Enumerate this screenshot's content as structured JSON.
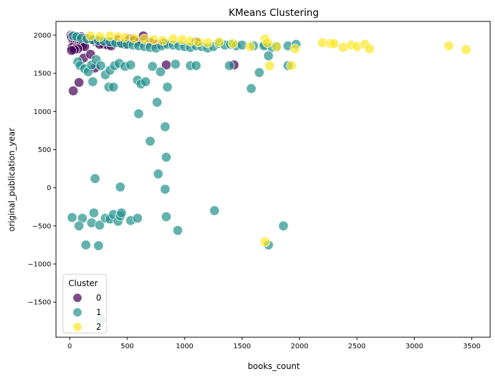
{
  "chart_data": {
    "type": "scatter",
    "title": "KMeans Clustering",
    "xlabel": "books_count",
    "ylabel": "original_publication_year",
    "xlim": [
      -120,
      3660
    ],
    "ylim": [
      -1960,
      2180
    ],
    "xticks": [
      0,
      500,
      1000,
      1500,
      2000,
      2500,
      3000,
      3500
    ],
    "yticks": [
      -1500,
      -1000,
      -500,
      0,
      500,
      1000,
      1500,
      2000
    ],
    "grid": false,
    "legend": {
      "title": "Cluster",
      "position": "lower-left"
    },
    "series": [
      {
        "name": "0",
        "color": "#440154",
        "points": [
          [
            10,
            2000
          ],
          [
            20,
            1990
          ],
          [
            30,
            1985
          ],
          [
            15,
            1970
          ],
          [
            40,
            1960
          ],
          [
            55,
            1950
          ],
          [
            70,
            1940
          ],
          [
            25,
            1930
          ],
          [
            35,
            1920
          ],
          [
            45,
            1900
          ],
          [
            60,
            1890
          ],
          [
            80,
            1880
          ],
          [
            90,
            1870
          ],
          [
            110,
            1860
          ],
          [
            130,
            1850
          ],
          [
            20,
            1840
          ],
          [
            50,
            1830
          ],
          [
            70,
            1820
          ],
          [
            40,
            1810
          ],
          [
            15,
            1800
          ],
          [
            100,
            1980
          ],
          [
            140,
            1960
          ],
          [
            160,
            1950
          ],
          [
            190,
            1940
          ],
          [
            220,
            1920
          ],
          [
            250,
            1910
          ],
          [
            280,
            1900
          ],
          [
            300,
            1880
          ],
          [
            330,
            1870
          ],
          [
            360,
            1860
          ],
          [
            390,
            1920
          ],
          [
            420,
            1940
          ],
          [
            450,
            1900
          ],
          [
            480,
            1880
          ],
          [
            520,
            1950
          ],
          [
            560,
            1930
          ],
          [
            600,
            1910
          ],
          [
            640,
            1990
          ],
          [
            700,
            1900
          ],
          [
            760,
            1880
          ],
          [
            820,
            1890
          ],
          [
            1100,
            1910
          ],
          [
            840,
            1610
          ],
          [
            1430,
            1610
          ],
          [
            220,
            1570
          ],
          [
            30,
            1270
          ],
          [
            80,
            1380
          ],
          [
            120,
            1700
          ],
          [
            180,
            1750
          ],
          [
            260,
            1880
          ]
        ]
      },
      {
        "name": "1",
        "color": "#21918c",
        "points": [
          [
            30,
            1990
          ],
          [
            60,
            1980
          ],
          [
            100,
            1960
          ],
          [
            150,
            1950
          ],
          [
            200,
            1940
          ],
          [
            250,
            1930
          ],
          [
            300,
            1920
          ],
          [
            350,
            1910
          ],
          [
            400,
            1900
          ],
          [
            450,
            1890
          ],
          [
            500,
            1880
          ],
          [
            550,
            1870
          ],
          [
            600,
            1860
          ],
          [
            650,
            1850
          ],
          [
            700,
            1840
          ],
          [
            750,
            1830
          ],
          [
            800,
            1860
          ],
          [
            850,
            1880
          ],
          [
            900,
            1870
          ],
          [
            950,
            1860
          ],
          [
            1000,
            1850
          ],
          [
            1050,
            1840
          ],
          [
            1100,
            1860
          ],
          [
            1150,
            1850
          ],
          [
            1200,
            1830
          ],
          [
            1250,
            1850
          ],
          [
            1300,
            1890
          ],
          [
            1350,
            1870
          ],
          [
            1400,
            1880
          ],
          [
            1450,
            1860
          ],
          [
            1500,
            1870
          ],
          [
            1600,
            1860
          ],
          [
            1700,
            1880
          ],
          [
            1800,
            1850
          ],
          [
            1900,
            1860
          ],
          [
            1970,
            1880
          ],
          [
            1690,
            1860
          ],
          [
            1760,
            1840
          ],
          [
            70,
            1650
          ],
          [
            90,
            1600
          ],
          [
            130,
            1560
          ],
          [
            160,
            1520
          ],
          [
            190,
            1610
          ],
          [
            230,
            1680
          ],
          [
            270,
            1600
          ],
          [
            310,
            1480
          ],
          [
            350,
            1540
          ],
          [
            390,
            1600
          ],
          [
            430,
            1630
          ],
          [
            480,
            1590
          ],
          [
            530,
            1610
          ],
          [
            590,
            1410
          ],
          [
            620,
            1360
          ],
          [
            660,
            1390
          ],
          [
            720,
            1590
          ],
          [
            790,
            1520
          ],
          [
            850,
            1320
          ],
          [
            920,
            1620
          ],
          [
            1050,
            1600
          ],
          [
            1100,
            1600
          ],
          [
            1390,
            1600
          ],
          [
            1580,
            1300
          ],
          [
            1650,
            1510
          ],
          [
            1730,
            1730
          ],
          [
            1900,
            1600
          ],
          [
            340,
            1320
          ],
          [
            380,
            1320
          ],
          [
            200,
            1390
          ],
          [
            760,
            1120
          ],
          [
            600,
            970
          ],
          [
            830,
            800
          ],
          [
            700,
            610
          ],
          [
            840,
            400
          ],
          [
            770,
            180
          ],
          [
            220,
            120
          ],
          [
            440,
            10
          ],
          [
            830,
            -20
          ],
          [
            20,
            -390
          ],
          [
            110,
            -400
          ],
          [
            80,
            -500
          ],
          [
            140,
            -750
          ],
          [
            210,
            -330
          ],
          [
            190,
            -460
          ],
          [
            260,
            -490
          ],
          [
            250,
            -760
          ],
          [
            310,
            -400
          ],
          [
            350,
            -410
          ],
          [
            380,
            -350
          ],
          [
            420,
            -440
          ],
          [
            440,
            -370
          ],
          [
            450,
            -330
          ],
          [
            530,
            -430
          ],
          [
            590,
            -400
          ],
          [
            840,
            -380
          ],
          [
            940,
            -560
          ],
          [
            1260,
            -300
          ],
          [
            1860,
            -500
          ],
          [
            1730,
            -750
          ],
          [
            270,
            -1740
          ]
        ]
      },
      {
        "name": "2",
        "color": "#fde725",
        "points": [
          [
            180,
            1990
          ],
          [
            260,
            1980
          ],
          [
            350,
            1990
          ],
          [
            420,
            1980
          ],
          [
            480,
            1970
          ],
          [
            560,
            1960
          ],
          [
            650,
            1950
          ],
          [
            730,
            1940
          ],
          [
            810,
            1930
          ],
          [
            900,
            1950
          ],
          [
            980,
            1940
          ],
          [
            1050,
            1920
          ],
          [
            1120,
            1910
          ],
          [
            1200,
            1900
          ],
          [
            1300,
            1910
          ],
          [
            1420,
            1890
          ],
          [
            1570,
            1850
          ],
          [
            1700,
            1950
          ],
          [
            1720,
            1900
          ],
          [
            1800,
            1850
          ],
          [
            1960,
            1820
          ],
          [
            2200,
            1900
          ],
          [
            2270,
            1890
          ],
          [
            2300,
            1890
          ],
          [
            2380,
            1840
          ],
          [
            2450,
            1870
          ],
          [
            2500,
            1850
          ],
          [
            2570,
            1880
          ],
          [
            2610,
            1820
          ],
          [
            3300,
            1860
          ],
          [
            3450,
            1810
          ],
          [
            1740,
            1600
          ],
          [
            1930,
            1600
          ],
          [
            1700,
            -710
          ]
        ]
      }
    ]
  }
}
